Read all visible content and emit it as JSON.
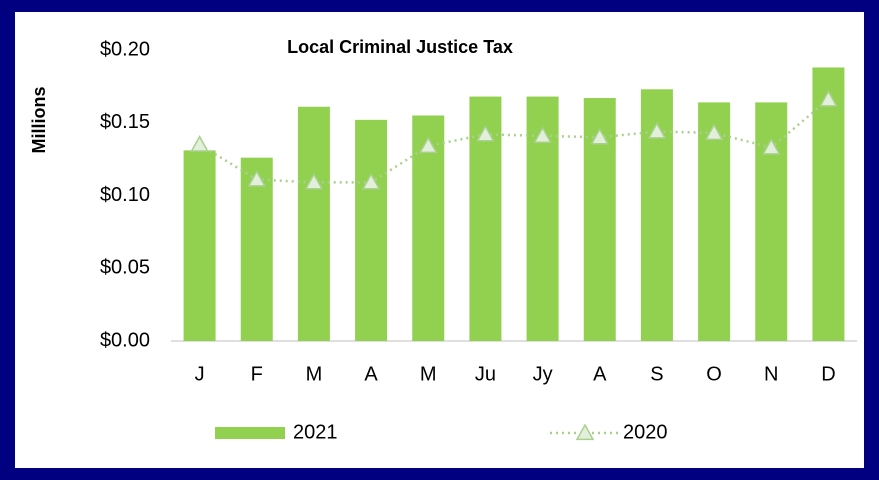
{
  "chart_data": {
    "type": "bar_line",
    "title": "Local Criminal Justice Tax",
    "y_label": "Millions",
    "categories": [
      "J",
      "F",
      "M",
      "A",
      "M",
      "Ju",
      "Jy",
      "A",
      "S",
      "O",
      "N",
      "D"
    ],
    "series": [
      {
        "name": "2021",
        "type": "bar",
        "color": "#92d050",
        "values": [
          0.131,
          0.126,
          0.161,
          0.152,
          0.155,
          0.168,
          0.168,
          0.167,
          0.173,
          0.164,
          0.164,
          0.188
        ]
      },
      {
        "name": "2020",
        "type": "line",
        "color": "#a9d18e",
        "values": [
          0.135,
          0.111,
          0.109,
          0.109,
          0.134,
          0.142,
          0.141,
          0.14,
          0.144,
          0.143,
          0.133,
          0.166
        ]
      }
    ],
    "ylim": [
      0,
      0.2
    ],
    "yticks": [
      {
        "value": 0,
        "label": "$0.00"
      },
      {
        "value": 0.05,
        "label": "$0.05"
      },
      {
        "value": 0.1,
        "label": "$0.10"
      },
      {
        "value": 0.15,
        "label": "$0.15"
      },
      {
        "value": 0.2,
        "label": "$0.20"
      }
    ],
    "legend": "bottom"
  }
}
